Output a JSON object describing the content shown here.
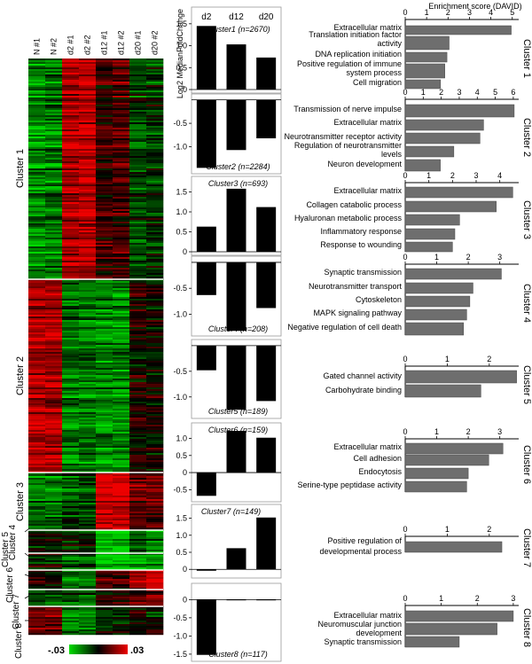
{
  "chart_data": [
    {
      "type": "heatmap",
      "columns": [
        "N #1",
        "N #2",
        "d2 #1",
        "d2 #2",
        "d12 #1",
        "d12 #2",
        "d20 #1",
        "d20 #2"
      ],
      "row_groups": [
        {
          "label": "Cluster 1",
          "rows": 2670
        },
        {
          "label": "Cluster 2",
          "rows": 2284
        },
        {
          "label": "Cluster 3",
          "rows": 693
        },
        {
          "label": "Cluster 4",
          "rows": 208
        },
        {
          "label": "Cluster 5",
          "rows": 189
        },
        {
          "label": "Cluster 6",
          "rows": 159
        },
        {
          "label": "Cluster 7",
          "rows": 149
        },
        {
          "label": "Cluster 8",
          "rows": 117
        }
      ],
      "group_mean_levels": [
        [
          -0.6,
          -0.5,
          0.7,
          0.8,
          0.2,
          0.3,
          -0.3,
          -0.2
        ],
        [
          0.7,
          0.7,
          -0.5,
          -0.5,
          -0.6,
          -0.6,
          0.1,
          0.0
        ],
        [
          -0.5,
          -0.5,
          -0.3,
          -0.3,
          0.9,
          0.9,
          0.4,
          0.4
        ],
        [
          -0.1,
          -0.1,
          -0.2,
          -0.2,
          -0.9,
          -0.9,
          -0.5,
          -0.6
        ],
        [
          -0.1,
          -0.1,
          -0.4,
          -0.4,
          -0.9,
          -0.9,
          -0.6,
          -0.7
        ],
        [
          0.1,
          0.1,
          -0.5,
          -0.5,
          0.3,
          0.3,
          0.6,
          1.0
        ],
        [
          -0.3,
          -0.3,
          -0.3,
          -0.4,
          0.1,
          0.2,
          0.3,
          0.4
        ],
        [
          0.5,
          0.5,
          -0.6,
          -0.6,
          -0.2,
          -0.2,
          0.0,
          -0.1
        ]
      ],
      "colorbar": {
        "min_label": "-.03",
        "max_label": ".03",
        "low_color": "#00dd00",
        "mid_color": "#000000",
        "high_color": "#ee0000"
      }
    },
    {
      "type": "bar",
      "categories": [
        "d2",
        "d12",
        "d20"
      ],
      "ylabel": "Log2 MedianFoldChange",
      "panels": [
        {
          "title": "Cluster1 (n=2670)",
          "values": [
            1.45,
            1.03,
            0.73
          ],
          "ylim": [
            0,
            1.8
          ],
          "ticks": [
            0,
            0.5,
            1.0,
            1.5
          ]
        },
        {
          "title": "Cluster2 (n=2284)",
          "values": [
            -1.45,
            -1.07,
            -0.82
          ],
          "ylim": [
            -1.5,
            0.05
          ],
          "ticks": [
            -0.5,
            -1.0
          ]
        },
        {
          "title": "Cluster3 (n=693)",
          "values": [
            0.63,
            1.58,
            1.12
          ],
          "ylim": [
            0,
            1.8
          ],
          "ticks": [
            0,
            0.5,
            1.0,
            1.5
          ]
        },
        {
          "title": "Cluster4 (n=208)",
          "values": [
            -0.63,
            -1.32,
            -0.88
          ],
          "ylim": [
            -1.35,
            0.05
          ],
          "ticks": [
            -0.5,
            -1.0
          ]
        },
        {
          "title": "Cluster5 (n=189)",
          "values": [
            -0.48,
            -1.25,
            -1.08
          ],
          "ylim": [
            -1.35,
            0.05
          ],
          "ticks": [
            -0.5,
            -1.0
          ]
        },
        {
          "title": "Cluster6 (n=159)",
          "values": [
            -0.68,
            1.22,
            1.02
          ],
          "ylim": [
            -0.75,
            1.35
          ],
          "ticks": [
            -0.5,
            0,
            0.5,
            1.0
          ]
        },
        {
          "title": "Cluster7 (n=149)",
          "values": [
            -0.04,
            0.62,
            1.52
          ],
          "ylim": [
            -0.15,
            1.8
          ],
          "ticks": [
            0,
            0.5,
            1.0,
            1.5
          ]
        },
        {
          "title": "Cluster8 (n=117)",
          "values": [
            -1.52,
            0.0,
            -0.02
          ],
          "ylim": [
            -1.6,
            0.35
          ],
          "ticks": [
            0,
            -0.5,
            -1.0,
            -1.5
          ]
        }
      ]
    },
    {
      "type": "bar",
      "orientation": "horizontal",
      "title": "Enrichment score (DAVID)",
      "bar_color": "#6e6e6e",
      "panels": [
        {
          "cluster": "Cluster 1",
          "xlim": [
            0,
            5.3
          ],
          "ticks": [
            0,
            1,
            2,
            3,
            4,
            5
          ],
          "categories": [
            "Extracellular matrix",
            "Translation initiation factor activity",
            "DNA replication initiation",
            "Positive regulation of immune system process",
            "Cell migration"
          ],
          "values": [
            4.95,
            2.05,
            1.95,
            1.85,
            1.65
          ]
        },
        {
          "cluster": "Cluster 2",
          "xlim": [
            0,
            6.3
          ],
          "ticks": [
            0,
            1,
            2,
            3,
            4,
            5,
            6
          ],
          "categories": [
            "Transmission of nerve impulse",
            "Extracellular matrix",
            "Neurotransmitter receptor activity",
            "Regulation of neurotransmitter levels",
            "Neuron development"
          ],
          "values": [
            6.05,
            4.35,
            4.15,
            2.7,
            1.95
          ]
        },
        {
          "cluster": "Cluster 3",
          "xlim": [
            0,
            4.8
          ],
          "ticks": [
            0,
            1,
            2,
            3,
            4
          ],
          "categories": [
            "Extracellular matrix",
            "Collagen catabolic process",
            "Hyaluronan metabolic process",
            "Inflammatory response",
            "Response to wounding"
          ],
          "values": [
            4.55,
            3.85,
            2.3,
            2.1,
            2.0
          ]
        },
        {
          "cluster": "Cluster 4",
          "xlim": [
            0,
            3.6
          ],
          "ticks": [
            0,
            1,
            2,
            3
          ],
          "categories": [
            "Synaptic transmission",
            "Neurotransmitter transport",
            "Cytoskeleton",
            "MAPK signaling pathway",
            "Negative regulation of cell death"
          ],
          "values": [
            3.05,
            2.15,
            2.05,
            1.95,
            1.85
          ]
        },
        {
          "cluster": "Cluster 5",
          "xlim": [
            0,
            2.7
          ],
          "ticks": [
            0,
            1,
            2
          ],
          "categories": [
            "Gated channel activity",
            "Carbohydrate binding"
          ],
          "values": [
            2.65,
            1.8
          ]
        },
        {
          "cluster": "Cluster 6",
          "xlim": [
            0,
            3.6
          ],
          "ticks": [
            0,
            1,
            2,
            3
          ],
          "categories": [
            "Extracellular matrix",
            "Cell adhesion",
            "Endocytosis",
            "Serine-type peptidase activity"
          ],
          "values": [
            3.1,
            2.65,
            2.0,
            1.95
          ]
        },
        {
          "cluster": "Cluster 7",
          "xlim": [
            0,
            2.7
          ],
          "ticks": [
            0,
            1,
            2
          ],
          "categories": [
            "Positive regulation of developmental process"
          ],
          "values": [
            2.3
          ]
        },
        {
          "cluster": "Cluster 8",
          "xlim": [
            0,
            3.15
          ],
          "ticks": [
            0,
            1,
            2,
            3
          ],
          "categories": [
            "Extracellular matrix",
            "Neuromuscular junction development",
            "Synaptic transmission"
          ],
          "values": [
            3.0,
            2.55,
            1.5
          ]
        }
      ]
    }
  ]
}
